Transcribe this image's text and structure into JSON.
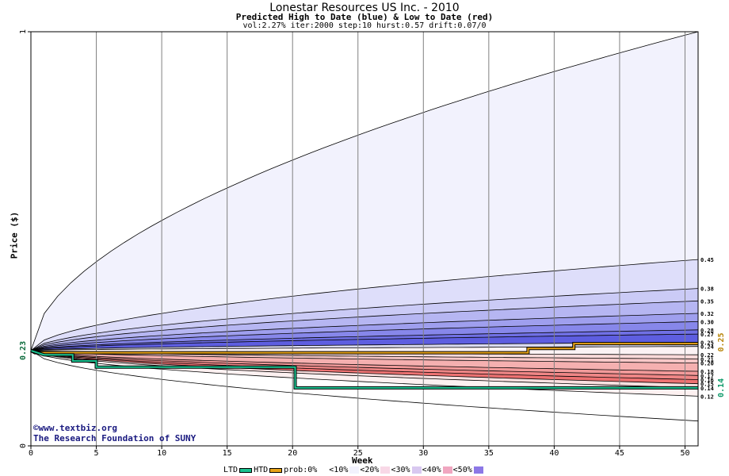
{
  "chart_data": {
    "type": "area",
    "title": "Lonestar Resources US Inc. - 2010",
    "subtitle": "Predicted High to Date (blue) &  Low to Date (red)",
    "params": "vol:2.27% iter:2000 step:10 hurst:0.57 drift:0.07/0",
    "xlabel": "Week",
    "ylabel": "Price ($)",
    "xlim": [
      0,
      51
    ],
    "ylim": [
      0,
      1
    ],
    "x_ticks": [
      0,
      5,
      10,
      15,
      20,
      25,
      30,
      35,
      40,
      45,
      50
    ],
    "y_ticks": [
      0,
      1
    ],
    "grid": true,
    "start_price": "0.23",
    "start_value": 0.23,
    "end_labels": {
      "prob_line": "0.25",
      "ltd_line": "0.14"
    },
    "right_labels": [
      "0.45",
      "0.38",
      "0.35",
      "0.32",
      "0.30",
      "0.28",
      "0.27",
      "0.25",
      "0.24",
      "0.22",
      "0.21",
      "0.20",
      "0.18",
      "0.17",
      "0.16",
      "0.15",
      "0.14",
      "0.12"
    ],
    "band_values_at_week_50": [
      1.0,
      0.45,
      0.38,
      0.35,
      0.32,
      0.3,
      0.28,
      0.27,
      0.25,
      0.24,
      0.22,
      0.21,
      0.2,
      0.18,
      0.17,
      0.16,
      0.15,
      0.14,
      0.12,
      0.06
    ],
    "band_colors": [
      "#f2f2fd",
      "#dedefa",
      "#cbcbf6",
      "#b6b6f2",
      "#9f9fee",
      "#8787ea",
      "#7070e5",
      "#5e5ee0",
      "#dadaf0",
      "#fbf2f4",
      "#fbdada",
      "#f8c8c8",
      "#f5b0b0",
      "#f29a9a",
      "#ef8686",
      "#ed7272",
      "#fbe0e0",
      "#fdf1f1"
    ],
    "htd_line": {
      "name": "HTD",
      "color": "#e8a317",
      "points": [
        [
          0,
          0.23
        ],
        [
          0.3,
          0.225
        ],
        [
          38,
          0.225
        ],
        [
          38,
          0.235
        ],
        [
          41.5,
          0.235
        ],
        [
          41.5,
          0.247
        ],
        [
          51,
          0.247
        ]
      ]
    },
    "ltd_line": {
      "name": "LTD",
      "color": "#1bc391",
      "points": [
        [
          0,
          0.23
        ],
        [
          1,
          0.22
        ],
        [
          3.2,
          0.22
        ],
        [
          3.2,
          0.205
        ],
        [
          5,
          0.205
        ],
        [
          5,
          0.19
        ],
        [
          20.2,
          0.19
        ],
        [
          20.2,
          0.14
        ],
        [
          51,
          0.14
        ]
      ]
    },
    "credit_lines": [
      "©www.textbiz.org",
      "The Research Foundation of SUNY"
    ],
    "legend": [
      {
        "label": "LTD",
        "kind": "line",
        "color": "#1bc391"
      },
      {
        "label": "HTD",
        "kind": "line",
        "color": "#e8a317"
      },
      {
        "label": "prob:0%",
        "kind": "box",
        "color": "#ffffff"
      },
      {
        "label": "<10%",
        "kind": "box",
        "color": "#f2f2fd"
      },
      {
        "label": "<20%",
        "kind": "box",
        "color": "#f8d8e6"
      },
      {
        "label": "<30%",
        "kind": "box",
        "color": "#d8c8f0"
      },
      {
        "label": "<40%",
        "kind": "box",
        "color": "#f0a6c0"
      },
      {
        "label": "<50%",
        "kind": "box",
        "color": "#8c78e6"
      }
    ]
  }
}
